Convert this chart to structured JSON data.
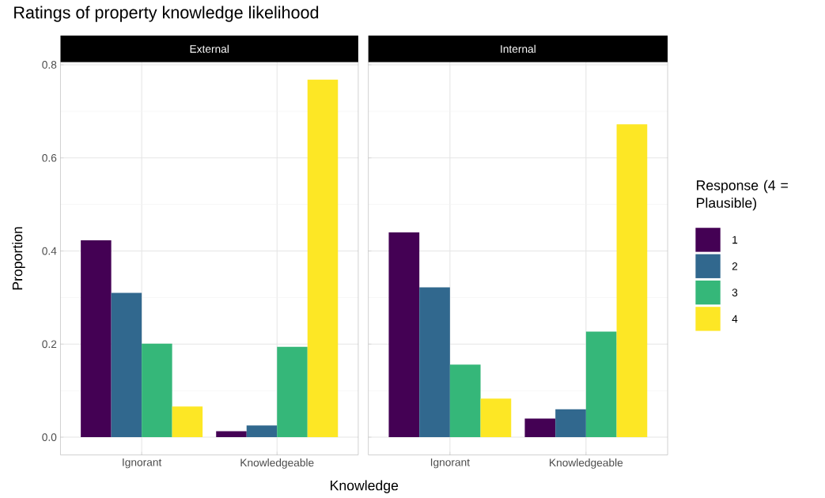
{
  "chart_data": [
    {
      "type": "bar",
      "title": "Ratings of property knowledge likelihood",
      "subtitle": "External",
      "xlabel": "Knowledge",
      "ylabel": "Proportion",
      "categories": [
        "Ignorant",
        "Knowledgeable"
      ],
      "series": [
        {
          "color": "#440154",
          "values": [
            0.423,
            0.013
          ]
        },
        {
          "color": "#31688e",
          "values": [
            0.31,
            0.025
          ]
        },
        {
          "color": "#35b779",
          "values": [
            0.201,
            0.194
          ]
        },
        {
          "color": "#fde725",
          "values": [
            0.066,
            0.768
          ]
        }
      ],
      "ylim": [
        -0.038,
        0.806
      ],
      "yticks": [
        {
          "value": 0,
          "label": "0.0"
        },
        0.2,
        0.4,
        0.6,
        0.8
      ],
      "grid": true
    },
    {
      "type": "bar",
      "subtitle": "Internal",
      "legend_title": "Response (4 = Plausible)",
      "categories": [
        "Ignorant",
        "Knowledgeable"
      ],
      "series": [
        {
          "name": "1",
          "color": "#440154",
          "values": [
            0.44,
            0.04
          ]
        },
        {
          "name": "2",
          "color": "#31688e",
          "values": [
            0.322,
            0.06
          ]
        },
        {
          "name": "3",
          "color": "#35b779",
          "values": [
            0.156,
            0.227
          ]
        },
        {
          "name": "4",
          "color": "#fde725",
          "values": [
            0.083,
            0.672
          ]
        }
      ],
      "ylim": [
        -0.038,
        0.806
      ],
      "yticks": [
        0,
        0.2,
        0.4,
        0.6,
        0.8
      ],
      "grid": true,
      "legend": "right",
      "tick_labels": "x"
    }
  ]
}
